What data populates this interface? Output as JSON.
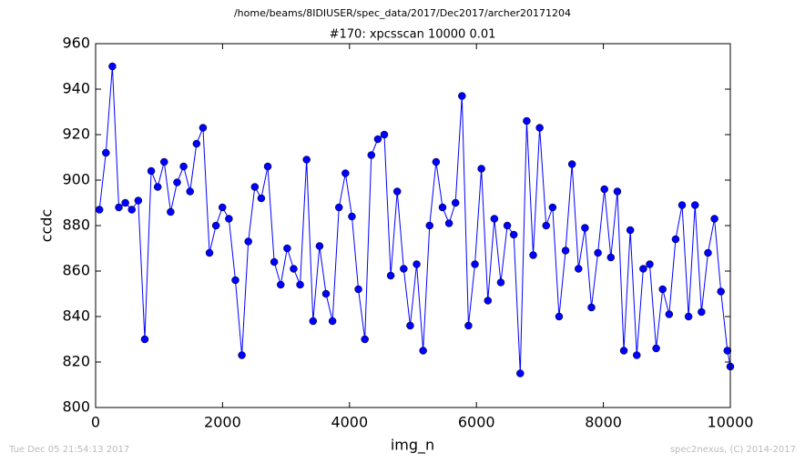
{
  "chart_data": {
    "type": "line",
    "suptitle": "/home/beams/8IDIUSER/spec_data/2017/Dec2017/archer20171204",
    "title": "#170: xpcsscan 10000 0.01",
    "xlabel": "img_n",
    "ylabel": "ccdc",
    "footer_left": "Tue Dec 05 21:54:13 2017",
    "footer_right": "spec2nexus, (C) 2014-2017",
    "xlim": [
      0,
      10000
    ],
    "ylim": [
      800,
      960
    ],
    "xticks": [
      0,
      2000,
      4000,
      6000,
      8000,
      10000
    ],
    "yticks": [
      800,
      820,
      840,
      860,
      880,
      900,
      920,
      940,
      960
    ],
    "color": "#0000ff",
    "x": [
      60,
      162,
      264,
      366,
      468,
      570,
      672,
      774,
      876,
      978,
      1080,
      1182,
      1284,
      1386,
      1488,
      1590,
      1692,
      1794,
      1896,
      1998,
      2100,
      2202,
      2304,
      2406,
      2508,
      2610,
      2712,
      2814,
      2916,
      3018,
      3120,
      3222,
      3324,
      3426,
      3528,
      3630,
      3732,
      3834,
      3936,
      4038,
      4140,
      4242,
      4344,
      4446,
      4548,
      4650,
      4752,
      4854,
      4956,
      5058,
      5160,
      5262,
      5364,
      5466,
      5568,
      5670,
      5772,
      5874,
      5976,
      6078,
      6180,
      6282,
      6384,
      6486,
      6588,
      6690,
      6792,
      6894,
      6996,
      7098,
      7200,
      7302,
      7404,
      7506,
      7608,
      7710,
      7812,
      7914,
      8016,
      8118,
      8220,
      8322,
      8424,
      8526,
      8628,
      8730,
      8832,
      8934,
      9036,
      9138,
      9240,
      9342,
      9444,
      9546,
      9648,
      9750,
      9852,
      9954,
      10000
    ],
    "values": [
      887,
      912,
      950,
      888,
      890,
      887,
      891,
      830,
      904,
      897,
      908,
      886,
      899,
      906,
      895,
      916,
      923,
      868,
      880,
      888,
      883,
      856,
      823,
      873,
      897,
      892,
      906,
      864,
      854,
      870,
      861,
      854,
      909,
      838,
      871,
      850,
      838,
      888,
      903,
      884,
      852,
      830,
      911,
      918,
      920,
      858,
      895,
      861,
      836,
      863,
      825,
      880,
      908,
      888,
      881,
      890,
      937,
      836,
      863,
      905,
      847,
      883,
      855,
      880,
      876,
      815,
      926,
      867,
      923,
      880,
      888,
      840,
      869,
      907,
      861,
      879,
      844,
      868,
      896,
      866,
      895,
      825,
      878,
      823,
      861,
      863,
      826,
      852,
      841,
      874,
      889,
      840,
      889,
      842,
      868,
      883,
      851,
      825,
      818
    ]
  }
}
